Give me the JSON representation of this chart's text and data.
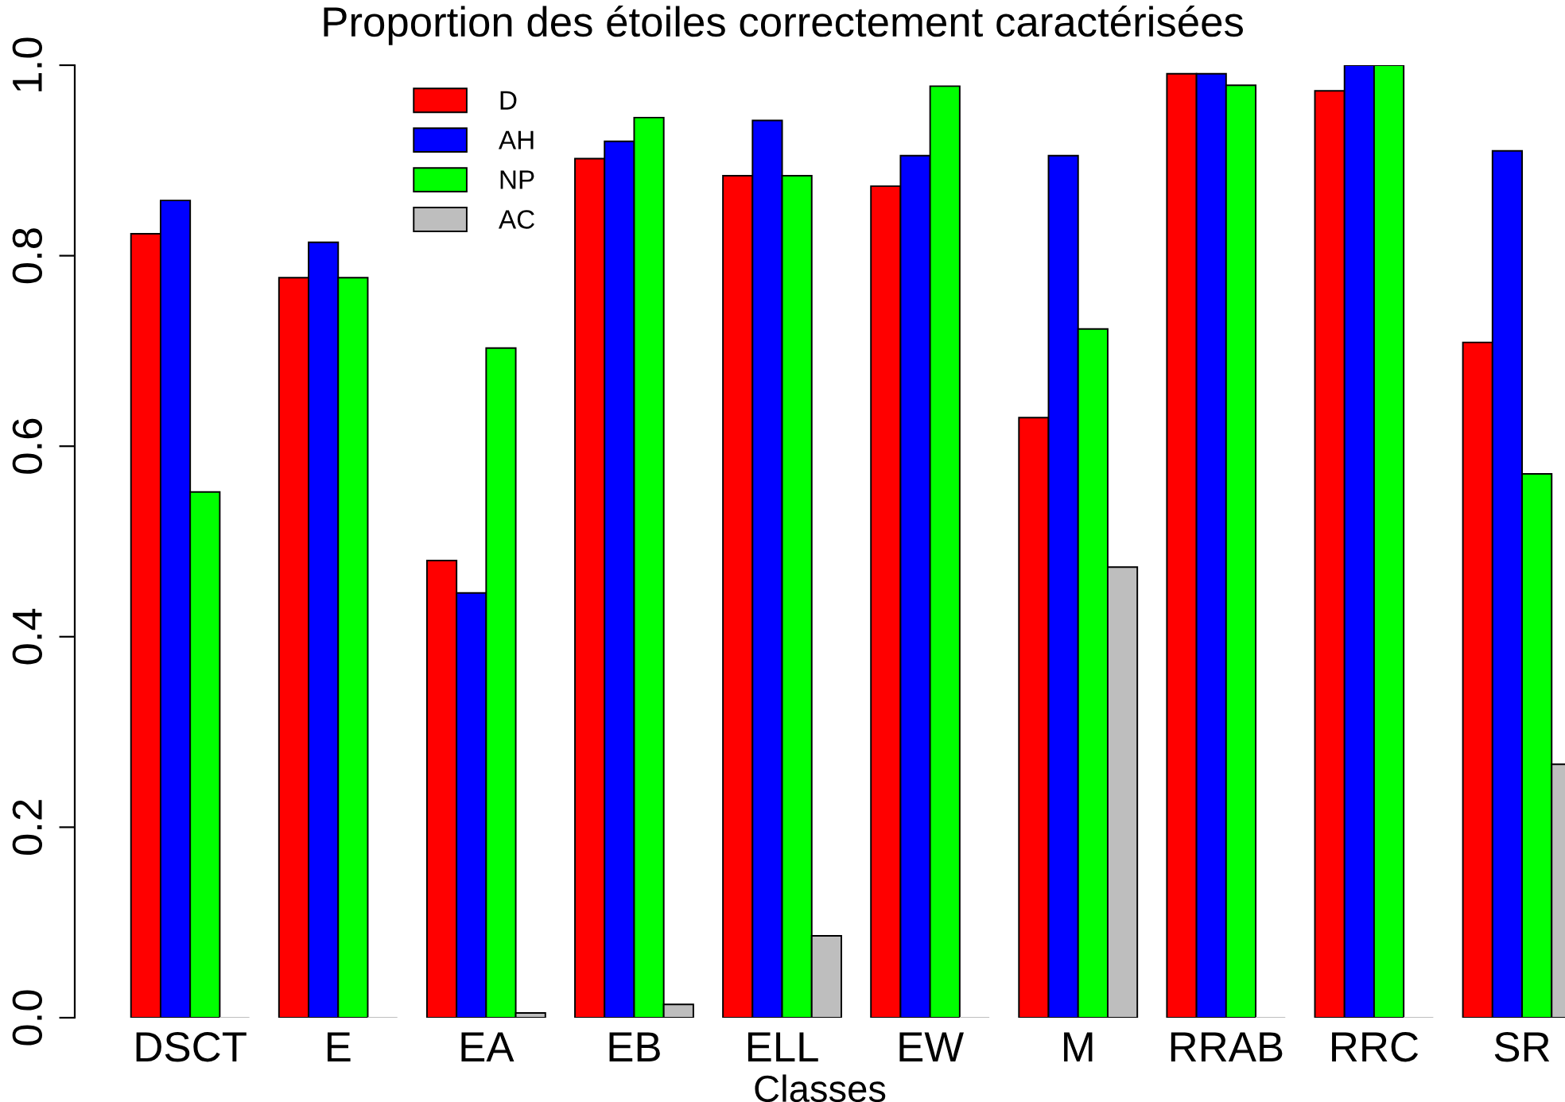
{
  "chart_data": {
    "type": "bar",
    "title": "Proportion des étoiles correctement caractérisées",
    "xlabel": "Classes",
    "categories": [
      "DSCT",
      "E",
      "EA",
      "EB",
      "ELL",
      "EW",
      "M",
      "RRAB",
      "RRC",
      "SR"
    ],
    "series": [
      {
        "name": "D",
        "color": "#ff0000",
        "values": [
          0.823,
          0.777,
          0.48,
          0.902,
          0.884,
          0.873,
          0.63,
          0.991,
          0.973,
          0.709
        ]
      },
      {
        "name": "AH",
        "color": "#0000ff",
        "values": [
          0.858,
          0.814,
          0.446,
          0.92,
          0.942,
          0.905,
          0.905,
          0.991,
          1.0,
          0.91
        ]
      },
      {
        "name": "NP",
        "color": "#00ff00",
        "values": [
          0.552,
          0.777,
          0.703,
          0.945,
          0.884,
          0.978,
          0.723,
          0.979,
          1.0,
          0.571
        ]
      },
      {
        "name": "AC",
        "color": "#bebebe",
        "values": [
          0,
          0,
          0.005,
          0.014,
          0.086,
          0,
          0.473,
          0,
          0,
          0.266
        ]
      }
    ],
    "ylim": [
      0,
      1.0
    ],
    "yticks": [
      {
        "value": 0,
        "label": "0.0"
      },
      {
        "value": 0.2,
        "label": "0.2"
      },
      {
        "value": 0.4,
        "label": "0.4"
      },
      {
        "value": 0.6,
        "label": "0.6"
      },
      {
        "value": 0.8,
        "label": "0.8"
      },
      {
        "value": 1.0,
        "label": "1.0"
      }
    ],
    "legend": "top left",
    "grid": false
  }
}
